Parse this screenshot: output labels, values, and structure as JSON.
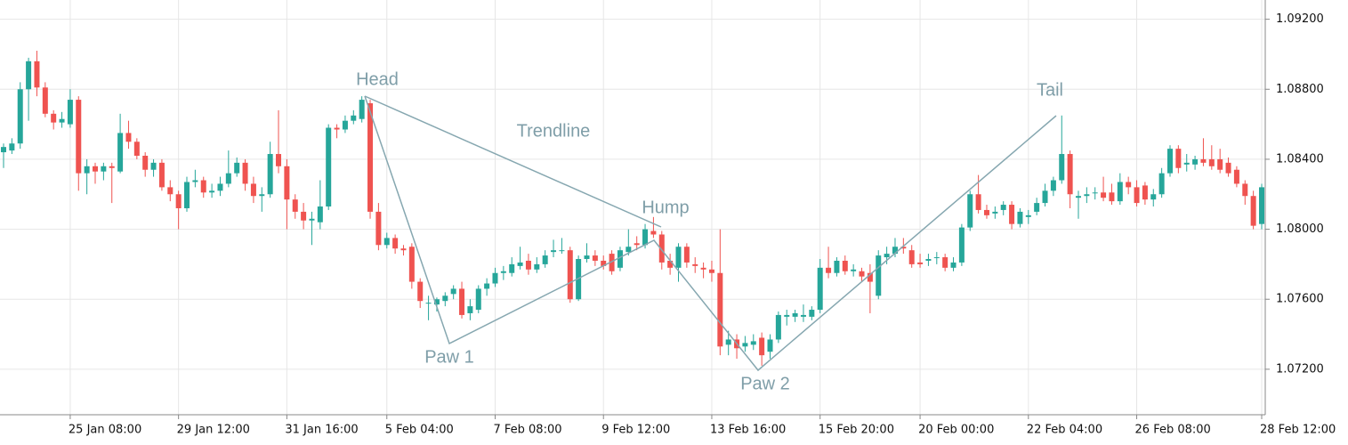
{
  "chart_data": {
    "type": "candlestick",
    "categories": [
      null,
      null,
      null,
      null,
      null,
      null,
      null,
      null,
      "25 Jan 08:00",
      null,
      null,
      null,
      null,
      null,
      null,
      null,
      null,
      null,
      null,
      null,
      null,
      "29 Jan 12:00",
      null,
      null,
      null,
      null,
      null,
      null,
      null,
      null,
      null,
      null,
      null,
      null,
      "31 Jan 16:00",
      null,
      null,
      null,
      null,
      null,
      null,
      null,
      null,
      null,
      null,
      null,
      "5 Feb 04:00",
      null,
      null,
      null,
      null,
      null,
      null,
      null,
      null,
      null,
      null,
      null,
      null,
      "7 Feb 08:00",
      null,
      null,
      null,
      null,
      null,
      null,
      null,
      null,
      null,
      null,
      null,
      null,
      "9 Feb 12:00",
      null,
      null,
      null,
      null,
      null,
      null,
      null,
      null,
      null,
      null,
      null,
      null,
      "13 Feb 16:00",
      null,
      null,
      null,
      null,
      null,
      null,
      null,
      null,
      null,
      null,
      null,
      null,
      "15 Feb 20:00",
      null,
      null,
      null,
      null,
      null,
      null,
      null,
      null,
      null,
      null,
      null,
      "20 Feb 00:00",
      null,
      null,
      null,
      null,
      null,
      null,
      null,
      null,
      null,
      null,
      null,
      null,
      "22 Feb 04:00",
      null,
      null,
      null,
      null,
      null,
      null,
      null,
      null,
      null,
      null,
      null,
      null,
      "26 Feb 08:00",
      null,
      null,
      null,
      null,
      null,
      null,
      null,
      null,
      null,
      null,
      null,
      null,
      null,
      null,
      "28 Feb 12:00"
    ],
    "candles": [
      [
        1.0844,
        1.0849,
        1.0835,
        1.0847
      ],
      [
        1.0845,
        1.0852,
        1.0843,
        1.0849
      ],
      [
        1.0849,
        1.0884,
        1.0846,
        1.088
      ],
      [
        1.088,
        1.0898,
        1.0862,
        1.0896
      ],
      [
        1.0896,
        1.0902,
        1.0876,
        1.0881
      ],
      [
        1.0881,
        1.0884,
        1.0864,
        1.0866
      ],
      [
        1.0866,
        1.0868,
        1.0857,
        1.0861
      ],
      [
        1.0861,
        1.0867,
        1.0858,
        1.0863
      ],
      [
        1.086,
        1.088,
        1.0858,
        1.0874
      ],
      [
        1.0874,
        1.0876,
        1.0822,
        1.0832
      ],
      [
        1.0832,
        1.084,
        1.082,
        1.0836
      ],
      [
        1.0836,
        1.0838,
        1.0826,
        1.0833
      ],
      [
        1.0833,
        1.0838,
        1.0828,
        1.0836
      ],
      [
        1.0836,
        1.0838,
        1.0815,
        1.0835
      ],
      [
        1.0833,
        1.0866,
        1.0832,
        1.0855
      ],
      [
        1.0855,
        1.0862,
        1.0846,
        1.085
      ],
      [
        1.085,
        1.0852,
        1.084,
        1.0842
      ],
      [
        1.0842,
        1.0844,
        1.083,
        1.0834
      ],
      [
        1.0834,
        1.084,
        1.083,
        1.0838
      ],
      [
        1.0838,
        1.084,
        1.0822,
        1.0824
      ],
      [
        1.0824,
        1.0828,
        1.0816,
        1.082
      ],
      [
        1.082,
        1.0822,
        1.08,
        1.0812
      ],
      [
        1.0812,
        1.083,
        1.081,
        1.0827
      ],
      [
        1.0827,
        1.0834,
        1.0824,
        1.0828
      ],
      [
        1.0828,
        1.083,
        1.0818,
        1.0821
      ],
      [
        1.0821,
        1.0826,
        1.0818,
        1.0822
      ],
      [
        1.0822,
        1.083,
        1.0819,
        1.0826
      ],
      [
        1.0826,
        1.0845,
        1.0824,
        1.0832
      ],
      [
        1.0832,
        1.0841,
        1.083,
        1.0838
      ],
      [
        1.0838,
        1.084,
        1.0822,
        1.0826
      ],
      [
        1.0826,
        1.083,
        1.0815,
        1.0819
      ],
      [
        1.0819,
        1.0824,
        1.081,
        1.082
      ],
      [
        1.082,
        1.085,
        1.0818,
        1.0843
      ],
      [
        1.0843,
        1.0868,
        1.0832,
        1.0836
      ],
      [
        1.0836,
        1.084,
        1.08,
        1.0817
      ],
      [
        1.0817,
        1.082,
        1.0806,
        1.081
      ],
      [
        1.081,
        1.0815,
        1.08,
        1.0805
      ],
      [
        1.0805,
        1.081,
        1.0791,
        1.0806
      ],
      [
        1.0804,
        1.0828,
        1.08,
        1.0813
      ],
      [
        1.0813,
        1.086,
        1.0811,
        1.0858
      ],
      [
        1.0858,
        1.086,
        1.0852,
        1.0857
      ],
      [
        1.0857,
        1.0865,
        1.0855,
        1.0862
      ],
      [
        1.0862,
        1.0868,
        1.086,
        1.0865
      ],
      [
        1.0863,
        1.0876,
        1.0861,
        1.0874
      ],
      [
        1.0872,
        1.0874,
        1.0806,
        1.081
      ],
      [
        1.081,
        1.0815,
        1.0788,
        1.0791
      ],
      [
        1.0791,
        1.0798,
        1.0789,
        1.0795
      ],
      [
        1.0795,
        1.0797,
        1.0786,
        1.0789
      ],
      [
        1.0789,
        1.0791,
        1.0785,
        1.0788
      ],
      [
        1.079,
        1.0792,
        1.0766,
        1.077
      ],
      [
        1.077,
        1.0772,
        1.0755,
        1.0759
      ],
      [
        1.0758,
        1.0762,
        1.0748,
        1.0758
      ],
      [
        1.0757,
        1.0761,
        1.0753,
        1.076
      ],
      [
        1.0759,
        1.0764,
        1.0756,
        1.0762
      ],
      [
        1.0763,
        1.0768,
        1.076,
        1.0766
      ],
      [
        1.0766,
        1.077,
        1.0749,
        1.0751
      ],
      [
        1.0752,
        1.076,
        1.0748,
        1.0756
      ],
      [
        1.0754,
        1.0768,
        1.0752,
        1.0766
      ],
      [
        1.0766,
        1.0772,
        1.0762,
        1.0769
      ],
      [
        1.0769,
        1.0778,
        1.0767,
        1.0775
      ],
      [
        1.0775,
        1.0779,
        1.0771,
        1.0776
      ],
      [
        1.0775,
        1.0784,
        1.0773,
        1.078
      ],
      [
        1.0779,
        1.079,
        1.0777,
        1.0781
      ],
      [
        1.0782,
        1.0786,
        1.0774,
        1.0777
      ],
      [
        1.0777,
        1.0784,
        1.0775,
        1.078
      ],
      [
        1.078,
        1.0788,
        1.0778,
        1.0785
      ],
      [
        1.0787,
        1.0794,
        1.0784,
        1.0788
      ],
      [
        1.0788,
        1.0795,
        1.0786,
        1.0788
      ],
      [
        1.0788,
        1.079,
        1.0758,
        1.076
      ],
      [
        1.076,
        1.0785,
        1.0759,
        1.0783
      ],
      [
        1.0783,
        1.0792,
        1.0781,
        1.0785
      ],
      [
        1.0785,
        1.0788,
        1.0779,
        1.0782
      ],
      [
        1.0782,
        1.0785,
        1.0777,
        1.0779
      ],
      [
        1.0786,
        1.0788,
        1.0774,
        1.0776
      ],
      [
        1.0778,
        1.079,
        1.0776,
        1.0788
      ],
      [
        1.0787,
        1.08,
        1.0785,
        1.079
      ],
      [
        1.0792,
        1.0796,
        1.0788,
        1.0791
      ],
      [
        1.0791,
        1.0803,
        1.0789,
        1.08
      ],
      [
        1.0799,
        1.0807,
        1.0795,
        1.0797
      ],
      [
        1.0797,
        1.0799,
        1.0777,
        1.0781
      ],
      [
        1.0782,
        1.0786,
        1.0774,
        1.0778
      ],
      [
        1.0778,
        1.0792,
        1.077,
        1.079
      ],
      [
        1.079,
        1.0792,
        1.0778,
        1.0781
      ],
      [
        1.078,
        1.0784,
        1.0775,
        1.0779
      ],
      [
        1.0778,
        1.0781,
        1.0772,
        1.0777
      ],
      [
        1.0777,
        1.0782,
        1.077,
        1.0775
      ],
      [
        1.0775,
        1.08,
        1.0728,
        1.0733
      ],
      [
        1.0734,
        1.0742,
        1.0728,
        1.0737
      ],
      [
        1.0737,
        1.074,
        1.0726,
        1.0732
      ],
      [
        1.0733,
        1.0739,
        1.073,
        1.0735
      ],
      [
        1.0734,
        1.074,
        1.0731,
        1.0736
      ],
      [
        1.0738,
        1.0741,
        1.0722,
        1.0728
      ],
      [
        1.073,
        1.074,
        1.0726,
        1.0737
      ],
      [
        1.0737,
        1.0753,
        1.0735,
        1.0751
      ],
      [
        1.075,
        1.0754,
        1.0745,
        1.0751
      ],
      [
        1.075,
        1.0754,
        1.0747,
        1.0752
      ],
      [
        1.075,
        1.0757,
        1.0747,
        1.0751
      ],
      [
        1.075,
        1.0756,
        1.0748,
        1.0754
      ],
      [
        1.0754,
        1.0783,
        1.0752,
        1.0778
      ],
      [
        1.0778,
        1.079,
        1.0772,
        1.0775
      ],
      [
        1.0775,
        1.0784,
        1.0773,
        1.0782
      ],
      [
        1.0782,
        1.0785,
        1.0774,
        1.0776
      ],
      [
        1.0776,
        1.078,
        1.0773,
        1.0777
      ],
      [
        1.0776,
        1.0778,
        1.077,
        1.0773
      ],
      [
        1.0775,
        1.078,
        1.0752,
        1.077
      ],
      [
        1.0762,
        1.0788,
        1.076,
        1.0785
      ],
      [
        1.0784,
        1.079,
        1.078,
        1.0786
      ],
      [
        1.0786,
        1.0795,
        1.0784,
        1.079
      ],
      [
        1.079,
        1.0795,
        1.0786,
        1.0789
      ],
      [
        1.0788,
        1.0791,
        1.0778,
        1.078
      ],
      [
        1.0781,
        1.0786,
        1.0778,
        1.078
      ],
      [
        1.0782,
        1.0786,
        1.0779,
        1.0783
      ],
      [
        1.0784,
        1.0787,
        1.078,
        1.0784
      ],
      [
        1.0784,
        1.0786,
        1.0776,
        1.0778
      ],
      [
        1.0778,
        1.0784,
        1.0776,
        1.0781
      ],
      [
        1.0781,
        1.0803,
        1.0779,
        1.0801
      ],
      [
        1.0801,
        1.0822,
        1.0799,
        1.082
      ],
      [
        1.082,
        1.0831,
        1.0809,
        1.0811
      ],
      [
        1.0811,
        1.0814,
        1.0806,
        1.0808
      ],
      [
        1.0809,
        1.0813,
        1.0806,
        1.081
      ],
      [
        1.0811,
        1.0816,
        1.0808,
        1.0814
      ],
      [
        1.0814,
        1.0816,
        1.08,
        1.0803
      ],
      [
        1.0803,
        1.0812,
        1.0801,
        1.081
      ],
      [
        1.0807,
        1.0811,
        1.0803,
        1.0808
      ],
      [
        1.081,
        1.0818,
        1.0808,
        1.0815
      ],
      [
        1.0815,
        1.0826,
        1.0813,
        1.0822
      ],
      [
        1.0822,
        1.083,
        1.0819,
        1.0828
      ],
      [
        1.0828,
        1.0865,
        1.0826,
        1.0843
      ],
      [
        1.0843,
        1.0845,
        1.0812,
        1.082
      ],
      [
        1.0818,
        1.0822,
        1.0806,
        1.0819
      ],
      [
        1.0819,
        1.0824,
        1.0815,
        1.082
      ],
      [
        1.0821,
        1.0824,
        1.0817,
        1.0821
      ],
      [
        1.0821,
        1.083,
        1.0816,
        1.0818
      ],
      [
        1.0821,
        1.0826,
        1.0814,
        1.0816
      ],
      [
        1.0816,
        1.0832,
        1.0814,
        1.0827
      ],
      [
        1.0827,
        1.083,
        1.082,
        1.0824
      ],
      [
        1.0824,
        1.0828,
        1.0813,
        1.0815
      ],
      [
        1.0825,
        1.0827,
        1.0814,
        1.0817
      ],
      [
        1.0817,
        1.0823,
        1.0813,
        1.082
      ],
      [
        1.082,
        1.0835,
        1.0818,
        1.0832
      ],
      [
        1.0832,
        1.0848,
        1.083,
        1.0846
      ],
      [
        1.0846,
        1.0848,
        1.0832,
        1.0835
      ],
      [
        1.0837,
        1.0843,
        1.0833,
        1.0838
      ],
      [
        1.0837,
        1.0842,
        1.0834,
        1.084
      ],
      [
        1.084,
        1.0852,
        1.0836,
        1.0838
      ],
      [
        1.084,
        1.0848,
        1.0834,
        1.0836
      ],
      [
        1.084,
        1.0846,
        1.0832,
        1.0834
      ],
      [
        1.0838,
        1.0841,
        1.083,
        1.0832
      ],
      [
        1.0834,
        1.0836,
        1.0824,
        1.0826
      ],
      [
        1.0826,
        1.0828,
        1.0814,
        1.0819
      ],
      [
        1.0819,
        1.0822,
        1.08,
        1.0802
      ],
      [
        1.0803,
        1.0826,
        1.08,
        1.0824
      ]
    ],
    "up_color": "#26a69a",
    "down_color": "#ef5350",
    "ylim": [
      1.0694,
      1.0931
    ],
    "yticks": [
      {
        "value": 1.072,
        "label": "1.07200"
      },
      {
        "value": 1.076,
        "label": "1.07600"
      },
      {
        "value": 1.08,
        "label": "1.08000"
      },
      {
        "value": 1.084,
        "label": "1.08400"
      },
      {
        "value": 1.088,
        "label": "1.08800"
      },
      {
        "value": 1.092,
        "label": "1.09200"
      }
    ],
    "grid": true,
    "annotations": [
      "Head",
      "Trendline",
      "Hump",
      "Paw 1",
      "Paw 2",
      "Tail"
    ]
  }
}
